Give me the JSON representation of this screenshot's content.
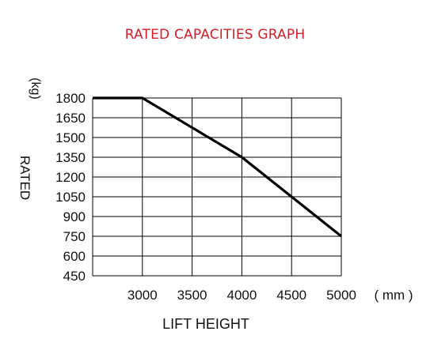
{
  "chart_data": {
    "type": "line",
    "title": "RATED CAPACITIES GRAPH",
    "xlabel": "LIFT HEIGHT",
    "x_unit": "( mm )",
    "ylabel": "RATED",
    "y_unit": "(kg)",
    "x_ticks": [
      3000,
      3500,
      4000,
      4500,
      5000
    ],
    "y_ticks": [
      1800,
      1650,
      1500,
      1350,
      1200,
      1050,
      900,
      750,
      600,
      450
    ],
    "xlim": [
      2500,
      5000
    ],
    "ylim": [
      450,
      1800
    ],
    "grid": true,
    "series": [
      {
        "x": [
          2500,
          3000,
          4000,
          5000
        ],
        "y": [
          1800,
          1800,
          1350,
          750
        ]
      }
    ],
    "colors": {
      "title": "#d01f2b",
      "line": "#000000",
      "grid": "#000000"
    }
  }
}
